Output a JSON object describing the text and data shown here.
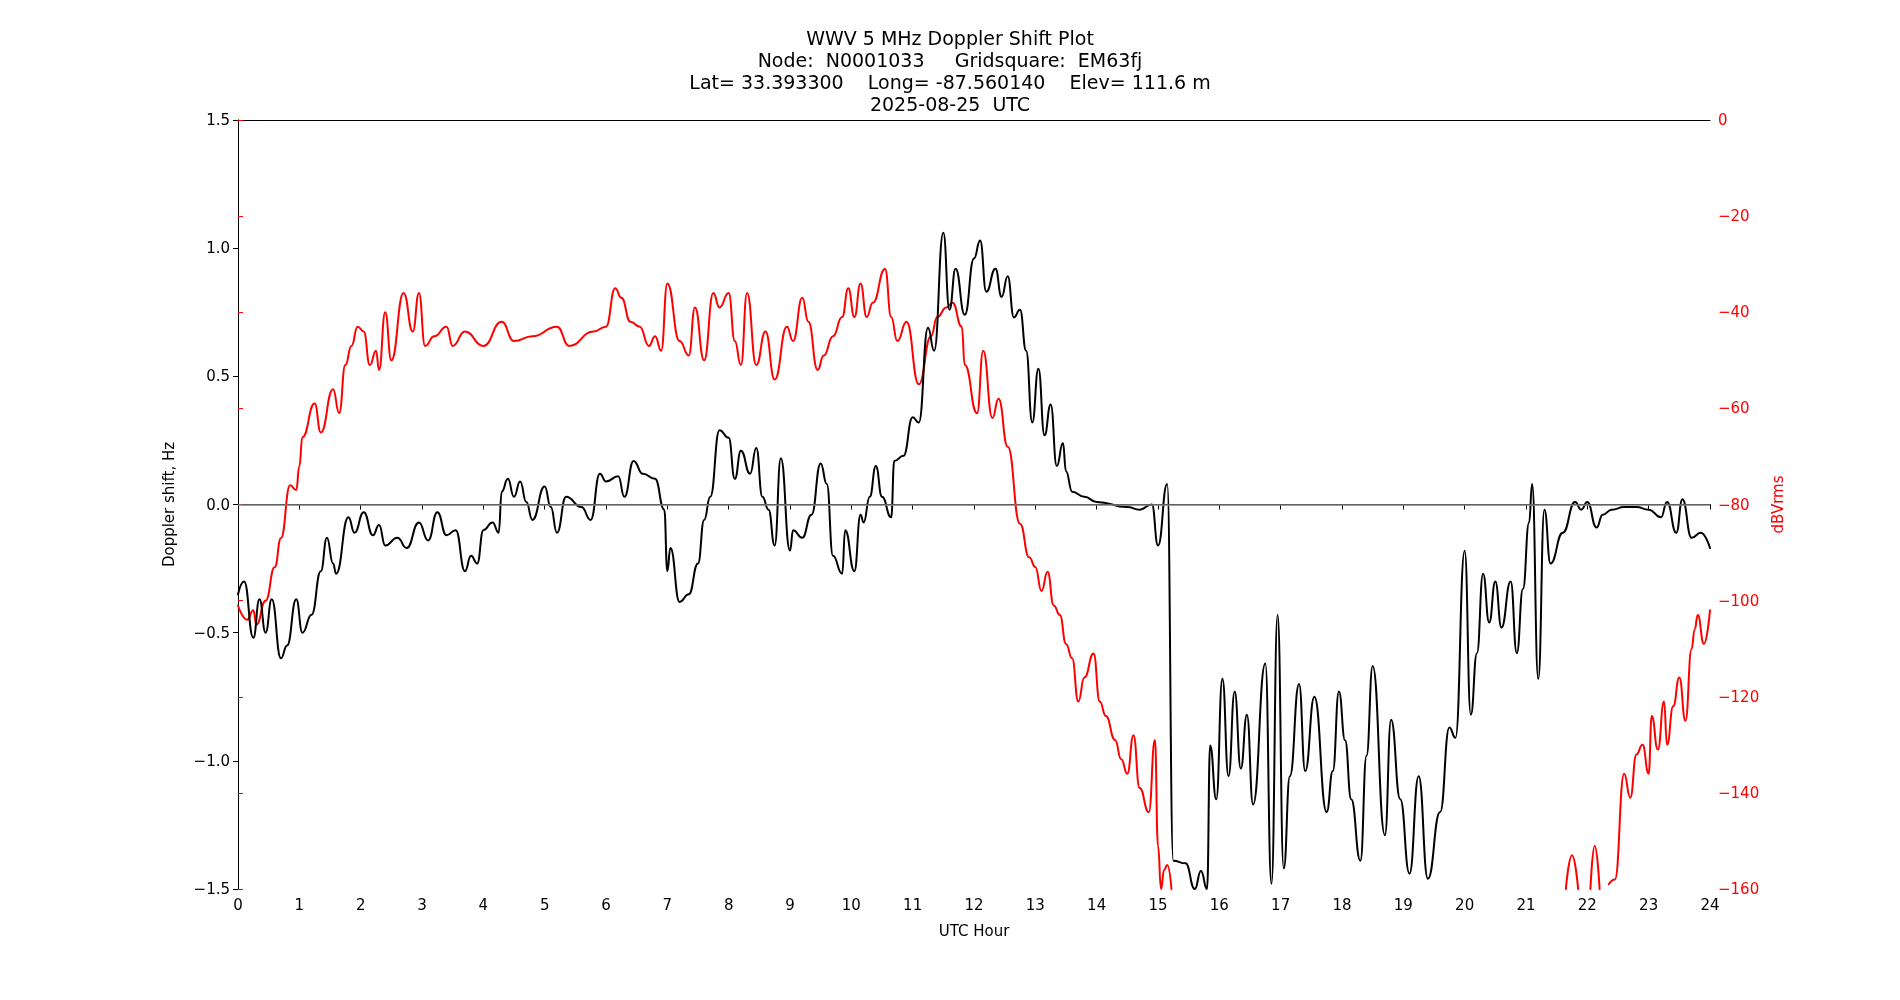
{
  "chart_data": {
    "type": "line",
    "title": "WWV 5 MHz Doppler Shift Plot",
    "subtitle": "Node:  N0001033     Gridsquare:  EM63fj\nLat= 33.393300    Long= -87.560140    Elev= 111.6 m\n2025-08-25  UTC",
    "xlabel": "UTC Hour",
    "ylabel": "Doppler shift, Hz",
    "y2label": "dBVrms",
    "xlim": [
      0,
      24
    ],
    "xticks": [
      0,
      1,
      2,
      3,
      4,
      5,
      6,
      7,
      8,
      9,
      10,
      11,
      12,
      13,
      14,
      15,
      16,
      17,
      18,
      19,
      20,
      21,
      22,
      23,
      24
    ],
    "ylim": [
      -1.5,
      1.5
    ],
    "yticks": [
      {
        "value": -1.5,
        "label": "−1.5"
      },
      {
        "value": -1,
        "label": "−1.0"
      },
      {
        "value": -0.5,
        "label": "−0.5"
      },
      {
        "value": 0,
        "label": "0.0"
      },
      {
        "value": 0.5,
        "label": "0.5"
      },
      {
        "value": 1,
        "label": "1.0"
      },
      {
        "value": 1.5,
        "label": "1.5"
      }
    ],
    "y2lim": [
      -160,
      0
    ],
    "y2ticks": [
      {
        "value": -160,
        "label": "−160"
      },
      {
        "value": -140,
        "label": "−140"
      },
      {
        "value": -120,
        "label": "−120"
      },
      {
        "value": -100,
        "label": "−100"
      },
      {
        "value": -80,
        "label": "−80"
      },
      {
        "value": -60,
        "label": "−60"
      },
      {
        "value": -40,
        "label": "−40"
      },
      {
        "value": -20,
        "label": "−20"
      },
      0
    ],
    "grid": false,
    "marker": "none",
    "line_style": "solid",
    "ref_lines": [
      {
        "axis": "y",
        "value": 0,
        "color": "#808080"
      }
    ],
    "series": [
      {
        "color": "#000000",
        "x": [
          0,
          0.1,
          0.25,
          0.35,
          0.45,
          0.55,
          0.7,
          0.8,
          0.95,
          1.05,
          1.2,
          1.35,
          1.45,
          1.55,
          1.6,
          1.8,
          1.9,
          2.05,
          2.2,
          2.3,
          2.4,
          2.6,
          2.75,
          2.95,
          3.1,
          3.25,
          3.4,
          3.55,
          3.7,
          3.8,
          3.9,
          4.0,
          4.15,
          4.25,
          4.3,
          4.4,
          4.5,
          4.6,
          4.7,
          4.8,
          5.0,
          5.1,
          5.2,
          5.35,
          5.6,
          5.75,
          5.9,
          6.0,
          6.2,
          6.3,
          6.45,
          6.6,
          6.8,
          6.95,
          7.0,
          7.05,
          7.2,
          7.35,
          7.5,
          7.6,
          7.7,
          7.85,
          8.0,
          8.1,
          8.2,
          8.35,
          8.45,
          8.55,
          8.65,
          8.75,
          8.85,
          9.0,
          9.05,
          9.2,
          9.35,
          9.5,
          9.6,
          9.7,
          9.85,
          9.9,
          10.05,
          10.15,
          10.2,
          10.3,
          10.4,
          10.5,
          10.65,
          10.7,
          10.85,
          11.0,
          11.1,
          11.25,
          11.35,
          11.5,
          11.6,
          11.7,
          11.85,
          12.0,
          12.1,
          12.2,
          12.35,
          12.45,
          12.55,
          12.65,
          12.75,
          12.85,
          12.95,
          13.05,
          13.15,
          13.25,
          13.35,
          13.45,
          13.5,
          13.6,
          13.8,
          14.0,
          14.5,
          14.7,
          14.9,
          15.0,
          15.15,
          15.25,
          15.45,
          15.6,
          15.7,
          15.8,
          15.85,
          15.95,
          16.05,
          16.15,
          16.25,
          16.35,
          16.45,
          16.55,
          16.75,
          16.85,
          16.95,
          17.05,
          17.15,
          17.3,
          17.4,
          17.55,
          17.75,
          17.85,
          17.95,
          18.05,
          18.15,
          18.3,
          18.4,
          18.5,
          18.7,
          18.8,
          18.95,
          19.1,
          19.25,
          19.4,
          19.6,
          19.75,
          19.85,
          20.0,
          20.1,
          20.2,
          20.3,
          20.4,
          20.5,
          20.6,
          20.75,
          20.85,
          20.95,
          21.05,
          21.1,
          21.2,
          21.3,
          21.4,
          21.6,
          21.8,
          21.9,
          22.0,
          22.15,
          22.25,
          22.4,
          22.6,
          22.8,
          23.0,
          23.2,
          23.3,
          23.45,
          23.55,
          23.7,
          23.85,
          24.0
        ],
        "values": [
          -0.35,
          -0.3,
          -0.52,
          -0.37,
          -0.5,
          -0.37,
          -0.6,
          -0.55,
          -0.37,
          -0.5,
          -0.43,
          -0.26,
          -0.13,
          -0.23,
          -0.27,
          -0.05,
          -0.11,
          -0.03,
          -0.12,
          -0.08,
          -0.16,
          -0.13,
          -0.17,
          -0.07,
          -0.14,
          -0.03,
          -0.12,
          -0.1,
          -0.26,
          -0.2,
          -0.23,
          -0.1,
          -0.07,
          -0.11,
          0.05,
          0.1,
          0.03,
          0.09,
          0.01,
          -0.06,
          0.07,
          -0.01,
          -0.11,
          0.03,
          -0.01,
          -0.06,
          0.12,
          0.09,
          0.11,
          0.03,
          0.17,
          0.12,
          0.1,
          -0.02,
          -0.26,
          -0.17,
          -0.38,
          -0.35,
          -0.23,
          -0.06,
          0.03,
          0.29,
          0.26,
          0.1,
          0.21,
          0.12,
          0.22,
          0.03,
          -0.02,
          -0.16,
          0.18,
          -0.18,
          -0.1,
          -0.13,
          -0.04,
          0.16,
          0.08,
          -0.2,
          -0.27,
          -0.1,
          -0.26,
          -0.04,
          -0.07,
          0.03,
          0.15,
          0.03,
          -0.05,
          0.17,
          0.19,
          0.34,
          0.32,
          0.69,
          0.6,
          1.06,
          0.76,
          0.92,
          0.74,
          0.96,
          1.03,
          0.83,
          0.92,
          0.81,
          0.89,
          0.73,
          0.76,
          0.6,
          0.32,
          0.53,
          0.27,
          0.39,
          0.15,
          0.24,
          0.13,
          0.05,
          0.03,
          0.01,
          -0.01,
          -0.02,
          0,
          -0.16,
          0.08,
          -1.39,
          -1.4,
          -1.5,
          -1.43,
          -1.5,
          -0.94,
          -1.15,
          -0.68,
          -1.06,
          -0.73,
          -1.03,
          -0.82,
          -1.17,
          -0.62,
          -1.48,
          -0.43,
          -1.42,
          -1.06,
          -0.7,
          -1.04,
          -0.75,
          -1.2,
          -1.04,
          -0.73,
          -0.92,
          -1.15,
          -1.39,
          -0.98,
          -0.63,
          -1.29,
          -0.84,
          -1.15,
          -1.44,
          -1.06,
          -1.46,
          -1.2,
          -0.87,
          -0.91,
          -0.18,
          -0.82,
          -0.58,
          -0.27,
          -0.46,
          -0.3,
          -0.48,
          -0.3,
          -0.58,
          -0.33,
          -0.07,
          0.08,
          -0.68,
          -0.02,
          -0.23,
          -0.11,
          0.01,
          -0.02,
          0.01,
          -0.09,
          -0.04,
          -0.02,
          -0.01,
          -0.01,
          -0.02,
          -0.05,
          0.01,
          -0.11,
          0.02,
          -0.13,
          -0.11,
          -0.17
        ]
      },
      {
        "color": "#ff0000",
        "axis": "y2",
        "x": [
          0,
          0.15,
          0.25,
          0.3,
          0.45,
          0.6,
          0.7,
          0.85,
          0.95,
          1.0,
          1.05,
          1.25,
          1.35,
          1.55,
          1.65,
          1.75,
          1.85,
          1.95,
          2.05,
          2.15,
          2.25,
          2.3,
          2.4,
          2.5,
          2.7,
          2.85,
          2.95,
          3.05,
          3.2,
          3.4,
          3.5,
          3.7,
          4.0,
          4.3,
          4.5,
          4.8,
          5.2,
          5.4,
          5.8,
          6.0,
          6.15,
          6.25,
          6.4,
          6.55,
          6.7,
          6.8,
          6.9,
          7.0,
          7.2,
          7.35,
          7.45,
          7.6,
          7.75,
          7.85,
          8.0,
          8.1,
          8.2,
          8.3,
          8.45,
          8.6,
          8.75,
          8.95,
          9.05,
          9.2,
          9.3,
          9.45,
          9.55,
          9.7,
          9.85,
          9.95,
          10.05,
          10.15,
          10.25,
          10.35,
          10.55,
          10.65,
          10.75,
          10.9,
          11.1,
          11.3,
          11.4,
          11.55,
          11.65,
          11.8,
          11.85,
          12.05,
          12.15,
          12.3,
          12.4,
          12.55,
          12.75,
          12.9,
          13.0,
          13.1,
          13.2,
          13.3,
          13.4,
          13.5,
          13.6,
          13.7,
          13.8,
          13.95,
          14.05,
          14.15,
          14.3,
          14.4,
          14.5,
          14.6,
          14.7,
          14.85,
          14.95,
          15.0,
          15.05,
          15.1,
          15.15,
          15.22,
          15.3,
          21.6,
          21.65,
          21.75,
          21.85,
          21.95,
          22.05,
          22.12,
          22.2,
          22.28,
          22.35,
          22.45,
          22.6,
          22.7,
          22.8,
          22.9,
          23.0,
          23.05,
          23.15,
          23.25,
          23.3,
          23.4,
          23.5,
          23.6,
          23.7,
          23.75,
          23.8,
          23.9,
          24.0
        ],
        "values": [
          -101,
          -104,
          -102,
          -105,
          -100,
          -93,
          -87,
          -76,
          -77,
          -72,
          -66,
          -59,
          -65,
          -56,
          -61,
          -51,
          -47,
          -43,
          -44,
          -51,
          -48,
          -52,
          -40,
          -50,
          -36,
          -44,
          -36,
          -47,
          -45,
          -43,
          -47,
          -44,
          -47,
          -42,
          -46,
          -45,
          -43,
          -47,
          -44,
          -43,
          -35,
          -37,
          -42,
          -43,
          -47,
          -45,
          -48,
          -34,
          -46,
          -49,
          -39,
          -50,
          -36,
          -39,
          -36,
          -46,
          -51,
          -36,
          -51,
          -44,
          -54,
          -43,
          -46,
          -37,
          -42,
          -52,
          -49,
          -45,
          -41,
          -35,
          -41,
          -34,
          -41,
          -38,
          -31,
          -41,
          -46,
          -42,
          -55,
          -45,
          -41,
          -39,
          -38,
          -43,
          -51,
          -61,
          -48,
          -62,
          -58,
          -68,
          -84,
          -91,
          -93,
          -98,
          -94,
          -101,
          -103,
          -109,
          -112,
          -121,
          -116,
          -111,
          -121,
          -124,
          -129,
          -133,
          -136,
          -128,
          -139,
          -144,
          -129,
          -151,
          -160,
          -156,
          -155,
          -160,
          null,
          null,
          -160,
          -153,
          -160,
          null,
          -160,
          -151,
          -160,
          null,
          -159,
          -158,
          -136,
          -141,
          -132,
          -130,
          -136,
          -124,
          -131,
          -121,
          -130,
          -122,
          -116,
          -125,
          -110,
          -106,
          -103,
          -109,
          -102
        ]
      }
    ]
  }
}
